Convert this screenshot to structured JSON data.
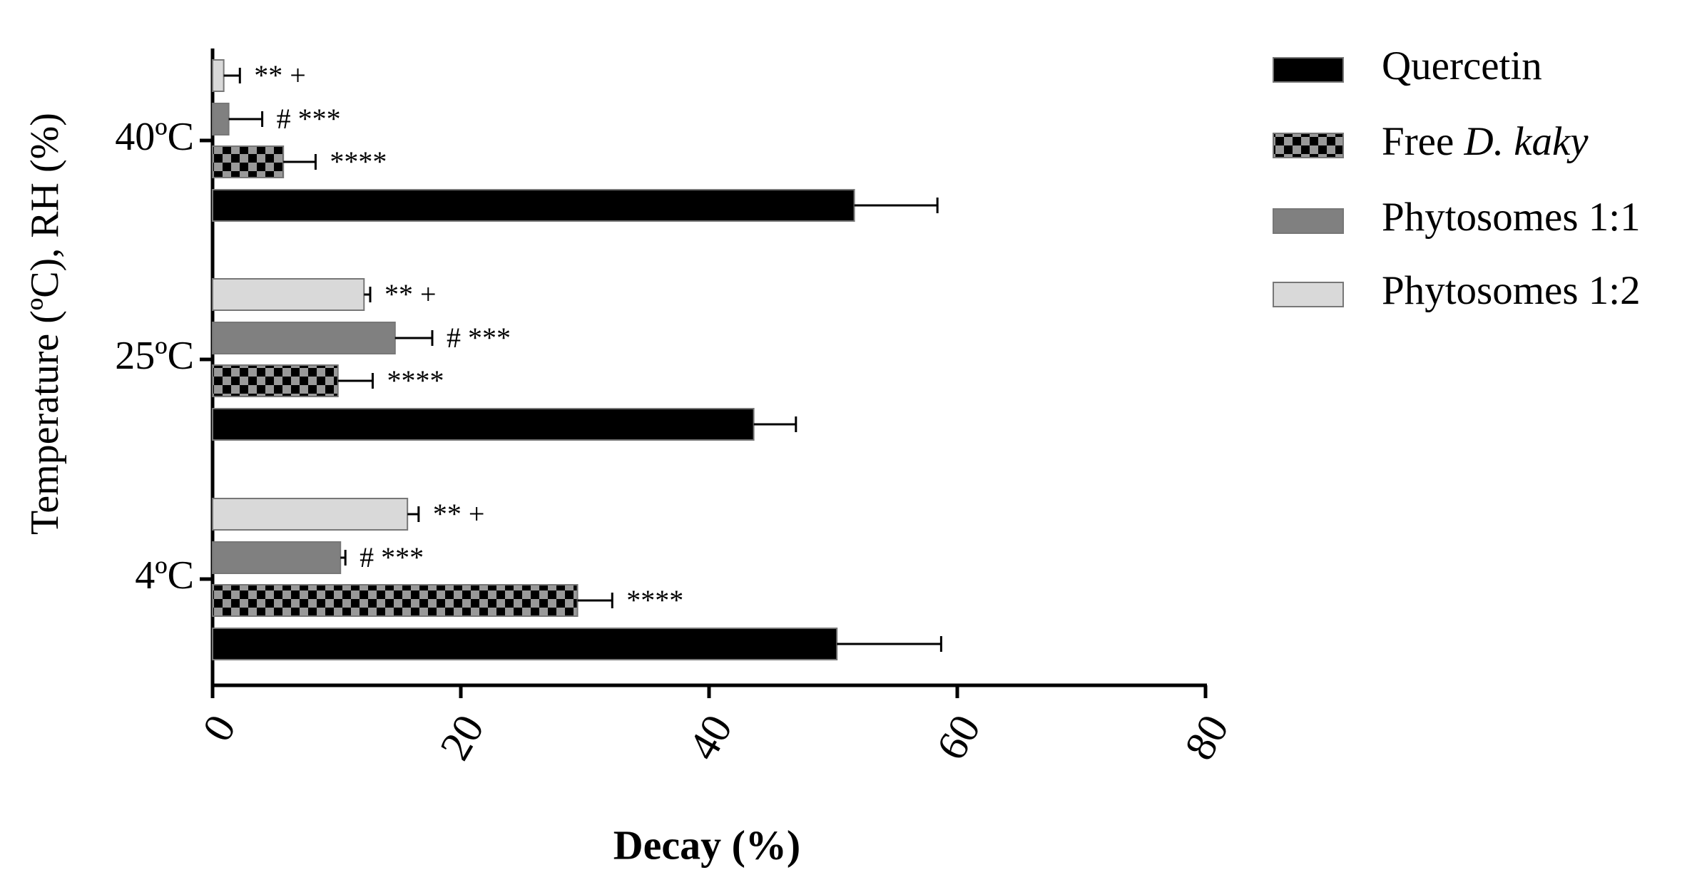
{
  "chart_data": {
    "type": "hbar",
    "y_label": "Temperature (ºC), RH (%)",
    "x_label": "Decay (%)",
    "categories": [
      "4ºC",
      "25ºC",
      "40ºC"
    ],
    "series": [
      {
        "name": "Quercetin",
        "color": "#000000",
        "values": [
          50.3,
          43.6,
          51.7
        ],
        "errors": [
          8.4,
          3.4,
          6.7
        ]
      },
      {
        "name": "Free D. kaky",
        "color": "#000000",
        "pattern": "checker",
        "values": [
          29.4,
          10.1,
          5.7
        ],
        "errors": [
          2.8,
          2.8,
          2.6
        ],
        "labels": [
          "****",
          "****",
          "****"
        ]
      },
      {
        "name": "Phytosomes 1:1",
        "color": "#808080",
        "values": [
          10.3,
          14.7,
          1.3
        ],
        "errors": [
          0.4,
          3.0,
          2.7
        ],
        "labels": [
          "# ***",
          "# ***",
          "# ***"
        ]
      },
      {
        "name": "Phytosomes 1:2",
        "color": "#d9d9d9",
        "values": [
          15.7,
          12.2,
          0.9
        ],
        "errors": [
          0.9,
          0.5,
          1.3
        ],
        "labels": [
          "** +",
          "** +",
          "** +"
        ]
      }
    ],
    "xlim": [
      0,
      80
    ],
    "xticks": [
      0,
      20,
      40,
      60,
      80
    ],
    "legend": "right"
  }
}
